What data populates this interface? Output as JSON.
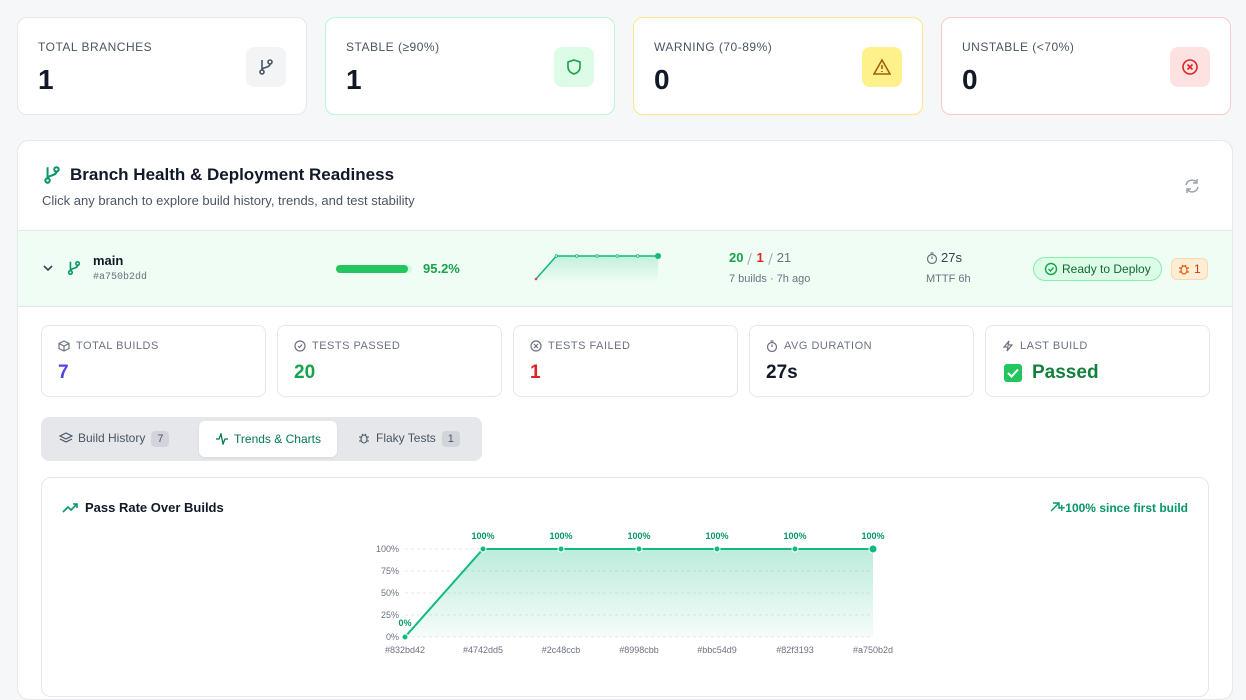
{
  "summary_cards": [
    {
      "label": "TOTAL BRANCHES",
      "value": 1
    },
    {
      "label": "STABLE (≥90%)",
      "value": 1
    },
    {
      "label": "WARNING (70-89%)",
      "value": 0
    },
    {
      "label": "UNSTABLE (<70%)",
      "value": 0
    }
  ],
  "panel": {
    "title": "Branch Health & Deployment Readiness",
    "subtitle": "Click any branch to explore build history, trends, and test stability"
  },
  "branch": {
    "name": "main",
    "commit": "#a750b2dd",
    "pass_rate": {
      "value": 95.2,
      "label": "95.2%"
    },
    "passed": 20,
    "failed": 1,
    "total": 21,
    "builds_info": "7 builds · 7h ago",
    "duration": "27s",
    "mttf": "MTTF 6h",
    "status": "Ready to Deploy",
    "flaky": 1
  },
  "stats": [
    {
      "label": "TOTAL BUILDS",
      "value": 7
    },
    {
      "label": "TESTS PASSED",
      "value": 20
    },
    {
      "label": "TESTS FAILED",
      "value": 1
    },
    {
      "label": "AVG DURATION",
      "value": "27s"
    },
    {
      "label": "LAST BUILD",
      "value": "Passed"
    }
  ],
  "tabs": [
    {
      "label": "Build History",
      "count": 7
    },
    {
      "label": "Trends & Charts"
    },
    {
      "label": "Flaky Tests",
      "count": 1
    }
  ],
  "chart_data": {
    "type": "line",
    "title": "Pass Rate Over Builds",
    "annotation": "+100% since first build",
    "categories": [
      "#832bd42",
      "#4742dd5",
      "#2c48ccb",
      "#8998cbb",
      "#bbc54d9",
      "#82f3193",
      "#a750b2d"
    ],
    "values": [
      0,
      100,
      100,
      100,
      100,
      100,
      100
    ],
    "value_labels": [
      "0%",
      "100%",
      "100%",
      "100%",
      "100%",
      "100%",
      "100%"
    ],
    "ylim": [
      0,
      100
    ],
    "yticks": [
      {
        "value": 0,
        "label": "0%"
      },
      {
        "value": 25,
        "label": "25%"
      },
      {
        "value": 50,
        "label": "50%"
      },
      {
        "value": 75,
        "label": "75%"
      },
      {
        "value": 100,
        "label": "100%"
      }
    ],
    "color": "#10b981",
    "grid": true
  }
}
